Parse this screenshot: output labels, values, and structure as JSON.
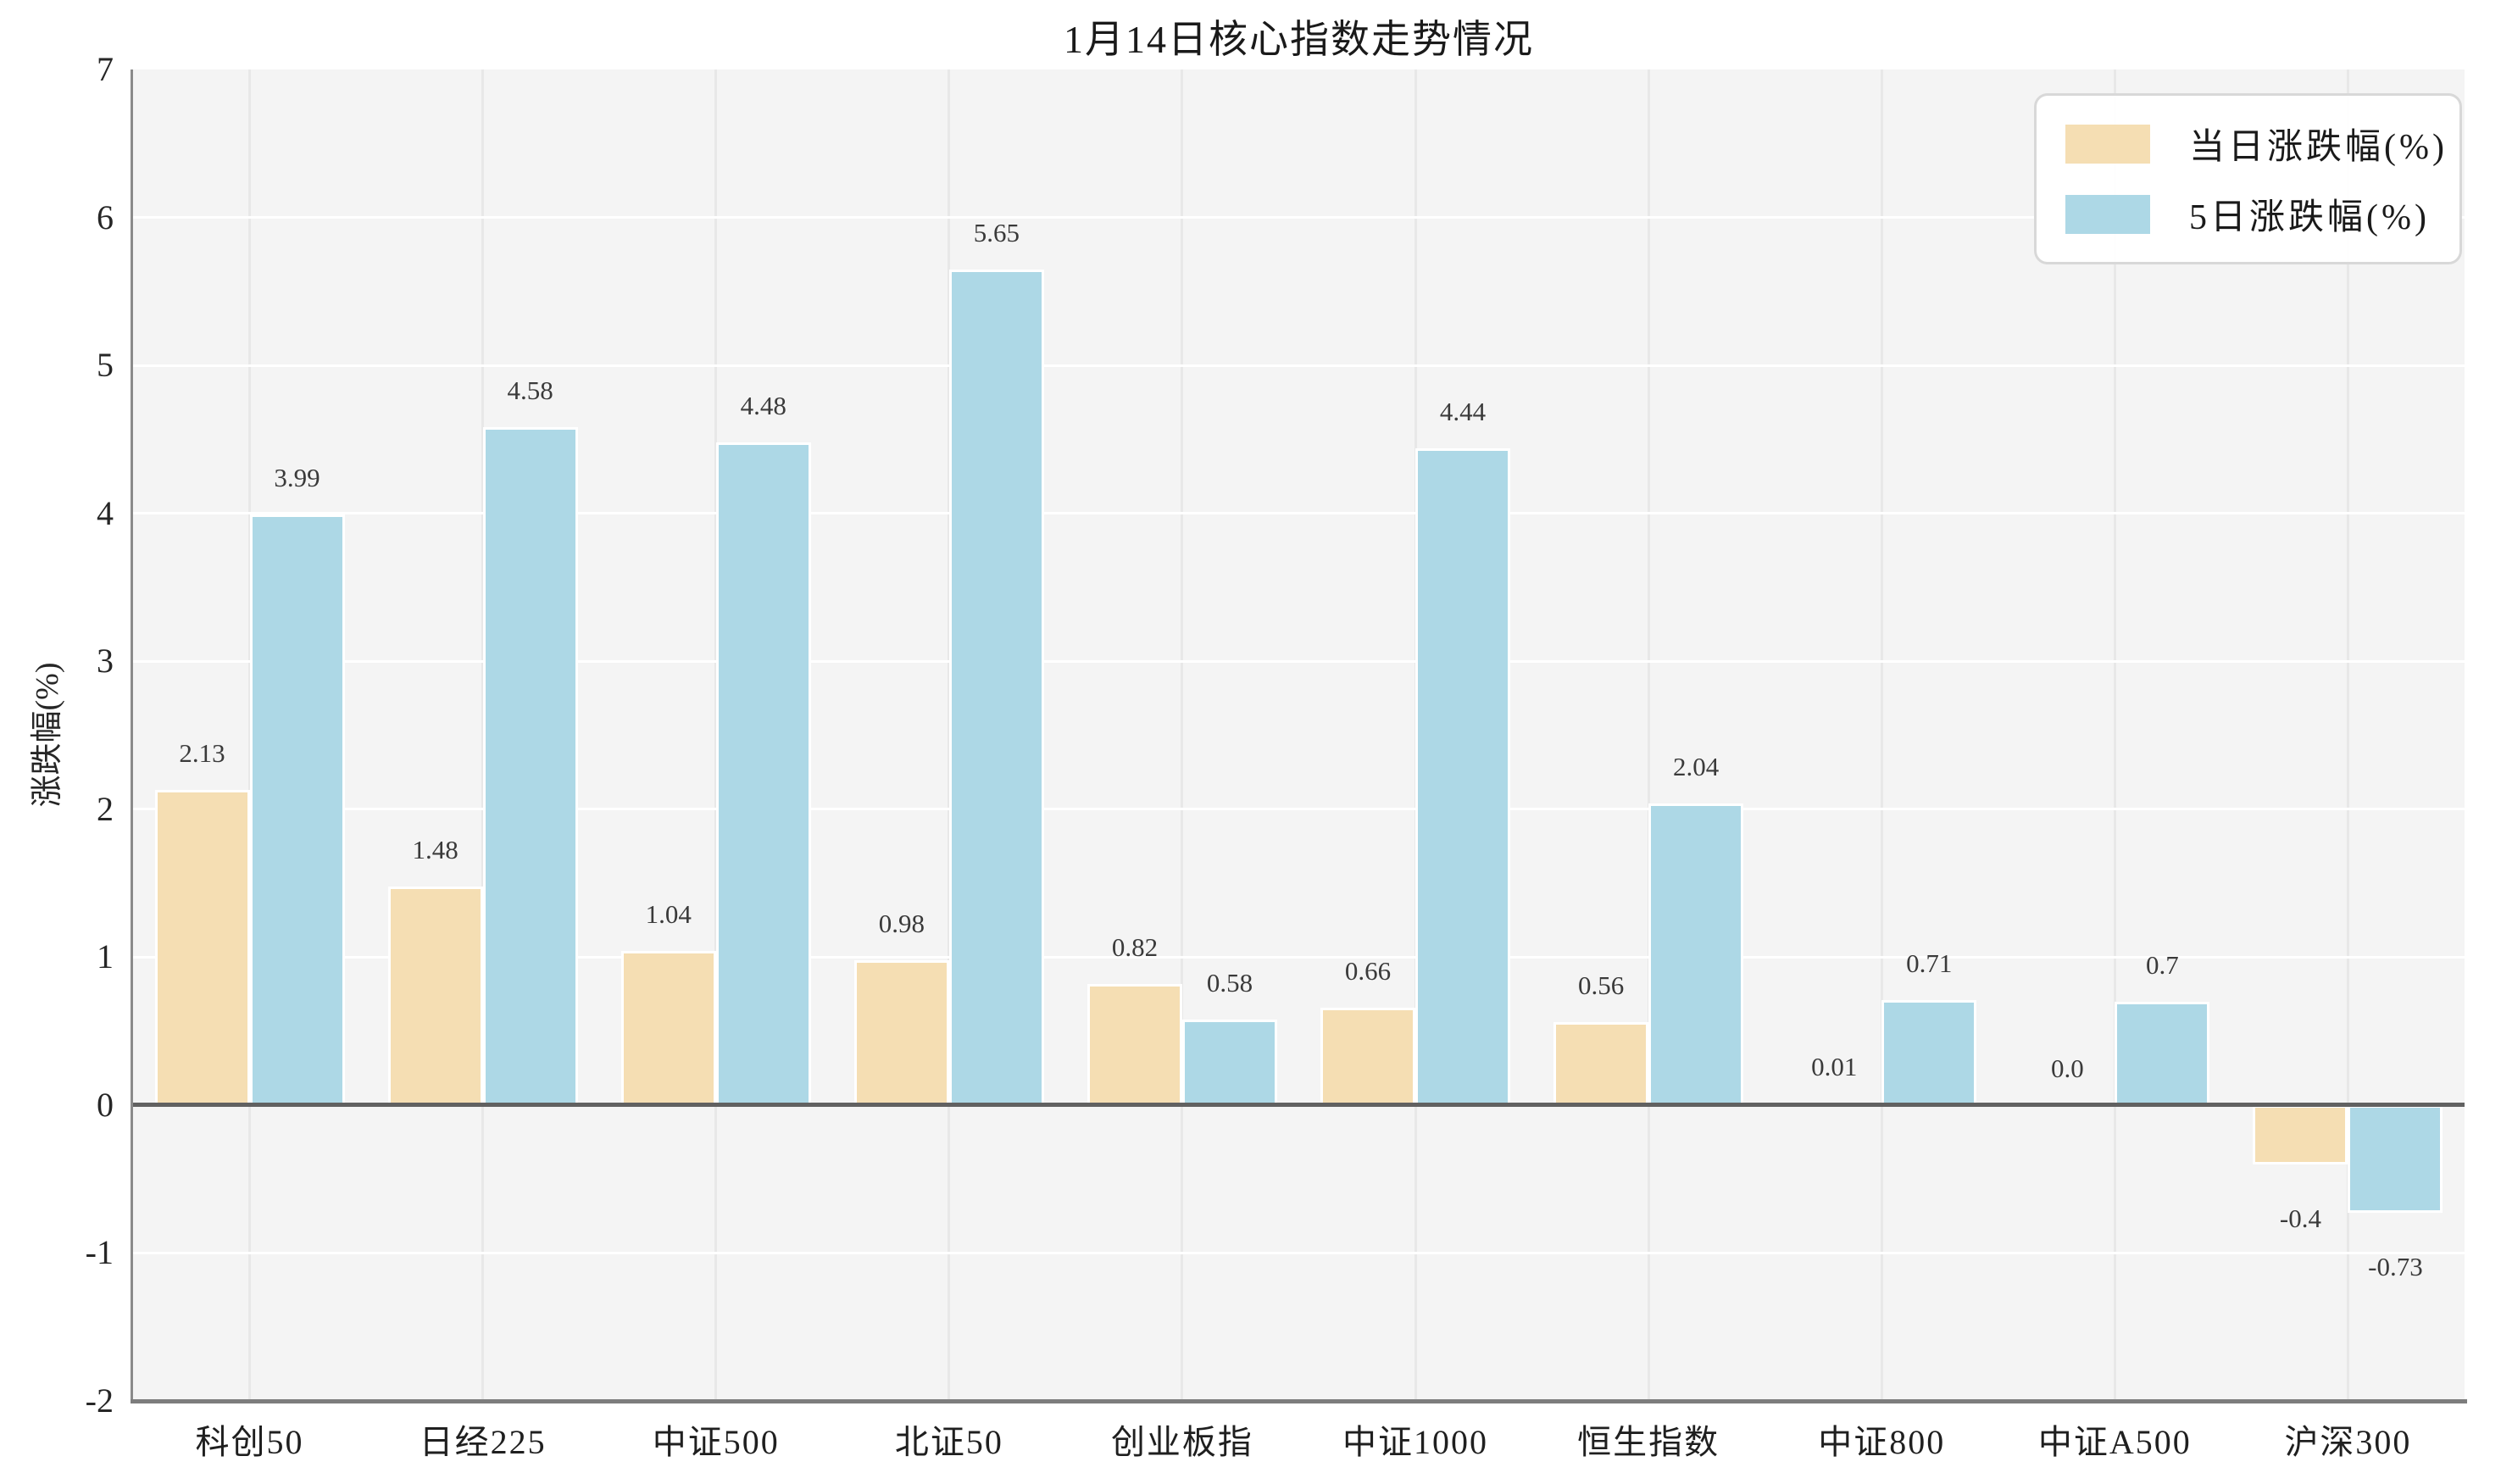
{
  "chart_data": {
    "type": "bar",
    "title": "1月14日核心指数走势情况",
    "xlabel": "",
    "ylabel": "涨跌幅(%)",
    "ylim": [
      -2,
      7
    ],
    "yticks": [
      7,
      6,
      5,
      4,
      3,
      2,
      1,
      0,
      -1,
      -2
    ],
    "grid": true,
    "legend_position": "upper right",
    "plot_background": "#f4f4f4",
    "categories": [
      "科创50",
      "日经225",
      "中证500",
      "北证50",
      "创业板指",
      "中证1000",
      "恒生指数",
      "中证800",
      "中证A500",
      "沪深300"
    ],
    "series": [
      {
        "name": "当日涨跌幅(%)",
        "color": "#F5DEB3",
        "values": [
          2.13,
          1.48,
          1.04,
          0.98,
          0.82,
          0.66,
          0.56,
          0.01,
          0.0,
          -0.4
        ],
        "labels": [
          "2.13",
          "1.48",
          "1.04",
          "0.98",
          "0.82",
          "0.66",
          "0.56",
          "0.01",
          "0.0",
          "-0.4"
        ]
      },
      {
        "name": "5日涨跌幅(%)",
        "color": "#ADD8E6",
        "values": [
          3.99,
          4.58,
          4.48,
          5.65,
          0.58,
          4.44,
          2.04,
          0.71,
          0.7,
          -0.73
        ],
        "labels": [
          "3.99",
          "4.58",
          "4.48",
          "5.65",
          "0.58",
          "4.44",
          "2.04",
          "0.71",
          "0.7",
          "-0.73"
        ]
      }
    ]
  }
}
